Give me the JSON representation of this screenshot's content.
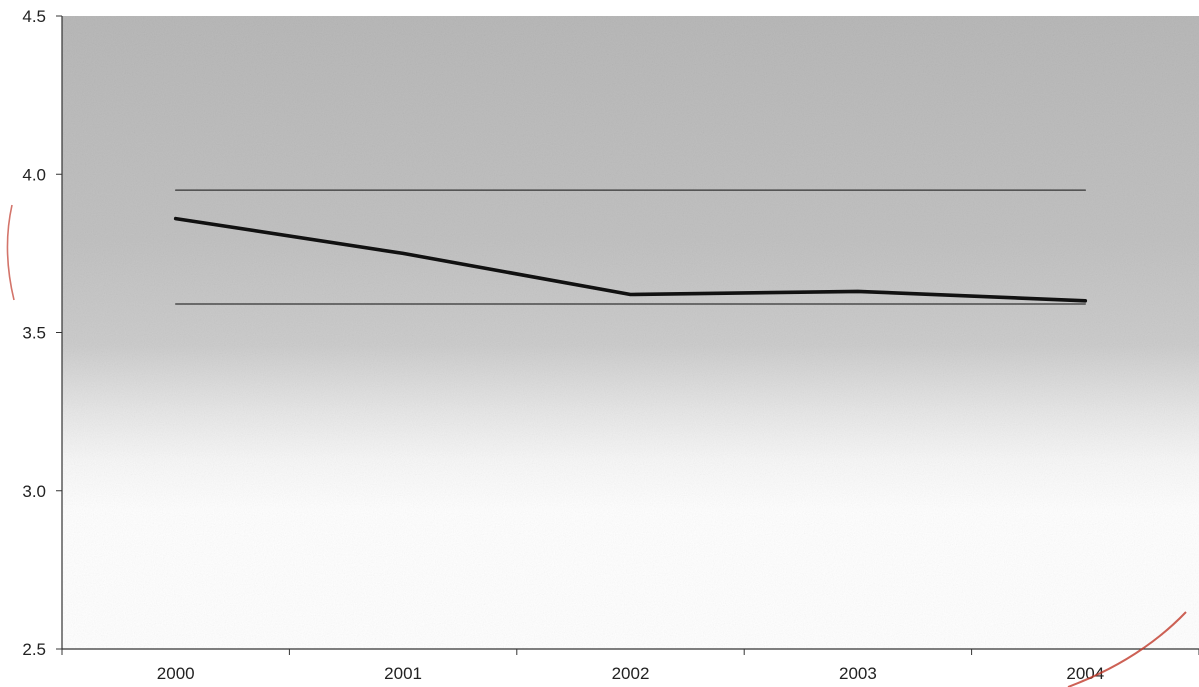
{
  "chart_data": {
    "type": "line",
    "title": "",
    "xlabel": "",
    "ylabel": "",
    "categories": [
      "2000",
      "2001",
      "2002",
      "2003",
      "2004"
    ],
    "ylim": [
      2.5,
      4.5
    ],
    "yticks": [
      2.5,
      3.0,
      3.5,
      4.0,
      4.5
    ],
    "ytick_labels": [
      "2.5",
      "3.0",
      "3.5",
      "4.0",
      "4.5"
    ],
    "grid": false,
    "legend": "none",
    "series": [
      {
        "values": [
          3.86,
          3.75,
          3.62,
          3.63,
          3.6
        ],
        "color": "#111111",
        "style": "thick"
      },
      {
        "values": [
          3.95,
          3.95,
          3.95,
          3.95,
          3.95
        ],
        "color": "#333333",
        "style": "thin"
      },
      {
        "values": [
          3.59,
          3.59,
          3.59,
          3.59,
          3.59
        ],
        "color": "#333333",
        "style": "thin"
      }
    ],
    "background": {
      "shaded_band": "gray gradient fading to white toward lower values",
      "shade_color": "#c4c4c4"
    }
  }
}
